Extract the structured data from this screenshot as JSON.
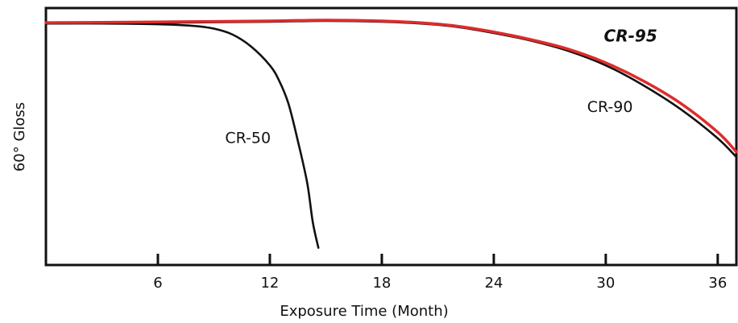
{
  "chart_data": {
    "type": "line",
    "title": "",
    "xlabel": "Exposure Time (Month)",
    "ylabel": "60°  Gloss",
    "xlim": [
      0,
      37
    ],
    "ylim": [
      0,
      100
    ],
    "xticks": [
      6,
      12,
      18,
      24,
      30,
      36
    ],
    "x_tick_labels": [
      "6",
      "12",
      "18",
      "24",
      "30",
      "36"
    ],
    "grid": false,
    "legend": "none (series labeled inline)",
    "series": [
      {
        "name": "CR-50",
        "color": "#111111",
        "x": [
          0,
          3,
          6,
          8,
          9,
          10,
          11,
          12,
          12.5,
          13,
          13.5,
          14,
          14.3,
          14.6
        ],
        "y": [
          94.0,
          94.0,
          93.7,
          93.0,
          92.0,
          89.7,
          85.0,
          77.7,
          71.7,
          62.7,
          48.3,
          32.0,
          16.7,
          6.7
        ]
      },
      {
        "name": "CR-90",
        "color": "#111111",
        "x": [
          0,
          6,
          12,
          15,
          18,
          20,
          22,
          24,
          26,
          28,
          30,
          32,
          34,
          36,
          37
        ],
        "y": [
          94.0,
          94.3,
          94.7,
          95.0,
          94.7,
          94.0,
          92.7,
          90.3,
          87.3,
          83.3,
          77.7,
          70.0,
          60.7,
          49.3,
          42.0
        ]
      },
      {
        "name": "CR-95",
        "color": "#e02b2b",
        "x": [
          0,
          6,
          12,
          15,
          18,
          20,
          22,
          24,
          26,
          28,
          30,
          32,
          34,
          36,
          37
        ],
        "y": [
          94.3,
          94.6,
          95.0,
          95.3,
          95.0,
          94.3,
          93.0,
          90.7,
          87.7,
          84.0,
          78.7,
          71.7,
          63.0,
          51.7,
          44.0
        ]
      }
    ],
    "annotations": [
      {
        "text": "CR-50",
        "x": 9.6,
        "y": 47.5,
        "color": "#111111",
        "style": "normal"
      },
      {
        "text": "CR-90",
        "x": 29.0,
        "y": 59.5,
        "color": "#111111",
        "style": "normal"
      },
      {
        "text": "CR-95",
        "x": 29.9,
        "y": 87.0,
        "color": "#e02b2b",
        "style": "bold-italic"
      }
    ]
  }
}
